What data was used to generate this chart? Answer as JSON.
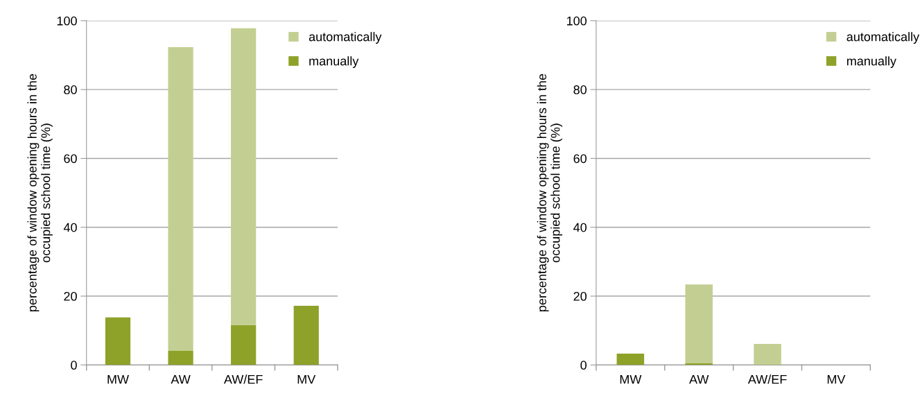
{
  "chart_data": [
    {
      "type": "bar",
      "stacked": true,
      "ylabel": "percentage of window opening hours in the\noccupied school time (%)",
      "categories": [
        "MW",
        "AW",
        "AW/EF",
        "MV"
      ],
      "series": [
        {
          "name": "manually",
          "color": "#8ea229",
          "values": [
            13.8,
            4.1,
            11.6,
            17.2
          ]
        },
        {
          "name": "automatically",
          "color": "#c3cf92",
          "values": [
            0,
            88.2,
            86.2,
            0
          ]
        }
      ],
      "ylim": [
        0,
        100
      ],
      "yticks": [
        0,
        20,
        40,
        60,
        80,
        100
      ],
      "grid": "y",
      "legend": "top right"
    },
    {
      "type": "bar",
      "stacked": true,
      "ylabel": "percentage of window opening hours in the\noccupied school time (%)",
      "categories": [
        "MW",
        "AW",
        "AW/EF",
        "MV"
      ],
      "series": [
        {
          "name": "manually",
          "color": "#8ea229",
          "values": [
            3.3,
            0.5,
            0,
            0
          ]
        },
        {
          "name": "automatically",
          "color": "#c3cf92",
          "values": [
            0,
            22.9,
            6.1,
            null
          ]
        }
      ],
      "ylim": [
        0,
        100
      ],
      "yticks": [
        0,
        20,
        40,
        60,
        80,
        100
      ],
      "grid": "y",
      "legend": "top right"
    }
  ]
}
